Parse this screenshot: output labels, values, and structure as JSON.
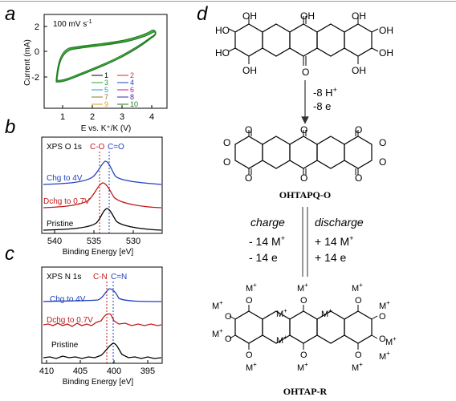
{
  "panels": {
    "a": {
      "letter": "a"
    },
    "b": {
      "letter": "b"
    },
    "c": {
      "letter": "c"
    },
    "d": {
      "letter": "d"
    }
  },
  "cv": {
    "scan_rate": "100 mV s",
    "scan_rate_sup": "-1",
    "ylabel": "Current (mA)",
    "xlabel": "E vs. K⁺/K (V)",
    "xticks": [
      "1",
      "2",
      "3",
      "4"
    ],
    "yticks": [
      "2",
      "0",
      "-2"
    ],
    "legend": [
      {
        "label": "1",
        "color": "#000000"
      },
      {
        "label": "2",
        "color": "#d62728"
      },
      {
        "label": "3",
        "color": "#2ca02c"
      },
      {
        "label": "4",
        "color": "#1f3fbf"
      },
      {
        "label": "5",
        "color": "#17a2c8"
      },
      {
        "label": "6",
        "color": "#c0149a"
      },
      {
        "label": "7",
        "color": "#8c7a2a"
      },
      {
        "label": "8",
        "color": "#3a2a9c"
      },
      {
        "label": "9",
        "color": "#e69a1f"
      },
      {
        "label": "10",
        "color": "#1f7a1f"
      }
    ]
  },
  "xps_o": {
    "title": "XPS O 1s",
    "peak1": "C-O",
    "peak2": "C=O",
    "traces": [
      {
        "label": "Chg to 4V",
        "color": "#1f3fbf"
      },
      {
        "label": "Dchg to 0.7V",
        "color": "#c01b1b"
      },
      {
        "label": "Pristine",
        "color": "#000000"
      }
    ],
    "xticks": [
      "540",
      "535",
      "530"
    ],
    "xlabel": "Binding Energy [eV]"
  },
  "xps_n": {
    "title": "XPS N 1s",
    "peak1": "C-N",
    "peak2": "C=N",
    "traces": [
      {
        "label": "Chg to 4V",
        "color": "#1f3fbf"
      },
      {
        "label": "Dchg to 0.7V",
        "color": "#c01b1b"
      },
      {
        "label": "Pristine",
        "color": "#000000"
      }
    ],
    "xticks": [
      "410",
      "405",
      "400",
      "395"
    ],
    "xlabel": "Binding Energy [eV]"
  },
  "scheme": {
    "oh": "OH",
    "ho": "HO",
    "o": "O",
    "step1_a": "-8 H",
    "step1_a_sup": "+",
    "step1_b": "-8 e",
    "name_mid": "OHTAPQ-O",
    "charge": "charge",
    "discharge": "discharge",
    "charge_a": "- 14 M",
    "charge_b": "- 14 e",
    "dis_a": "+ 14 M",
    "dis_b": "+ 14 e",
    "plus": "+",
    "minus": "–",
    "m_plus": "M",
    "name_bottom": "OHTAP-R"
  }
}
